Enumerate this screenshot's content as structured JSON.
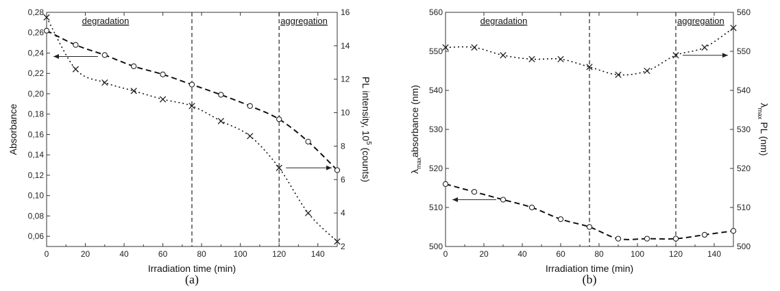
{
  "chart_data": [
    {
      "type": "scatter",
      "panel_label": "(a)",
      "xlabel": "Irradiation time (min)",
      "ylabel_left": "Absorbance",
      "ylabel_right": "PL intensity, 10",
      "ylabel_right_sup": "5",
      "ylabel_right_suffix": " (counts)",
      "xlim": [
        0,
        150
      ],
      "ylim_left": [
        0.05,
        0.28
      ],
      "ylim_right": [
        2,
        16
      ],
      "xticks": [
        0,
        20,
        40,
        60,
        80,
        100,
        120,
        140
      ],
      "yticks_left": [
        "0,06",
        "0,08",
        "0,10",
        "0,12",
        "0,14",
        "0,16",
        "0,18",
        "0,20",
        "0,22",
        "0,24",
        "0,26",
        "0,28"
      ],
      "yticks_right": [
        "2",
        "4",
        "6",
        "8",
        "10",
        "12",
        "14",
        "16"
      ],
      "vlines": [
        75,
        120
      ],
      "region_labels": [
        "degradation",
        "aggregation"
      ],
      "series": [
        {
          "axis": "left",
          "marker": "circle",
          "line": "dashed",
          "x": [
            0,
            15,
            30,
            45,
            60,
            75,
            90,
            105,
            120,
            135,
            150
          ],
          "values": [
            0.262,
            0.248,
            0.238,
            0.227,
            0.219,
            0.209,
            0.199,
            0.188,
            0.175,
            0.153,
            0.125
          ]
        },
        {
          "axis": "right",
          "marker": "cross",
          "line": "dotted",
          "x": [
            0,
            15,
            30,
            45,
            60,
            75,
            90,
            105,
            120,
            135,
            150
          ],
          "values": [
            15.7,
            12.6,
            11.8,
            11.3,
            10.8,
            10.4,
            9.5,
            8.6,
            6.7,
            4.0,
            2.3
          ]
        }
      ],
      "arrows": [
        {
          "direction": "left",
          "axis": "left"
        },
        {
          "direction": "right",
          "axis": "right"
        }
      ]
    },
    {
      "type": "scatter",
      "panel_label": "(b)",
      "xlabel": "Irradiation time (min)",
      "ylabel_left_pre": "λ",
      "ylabel_left_sub": "max",
      "ylabel_left_post": "absorbance (nm)",
      "ylabel_right_pre": "λ",
      "ylabel_right_sub": "max",
      "ylabel_right_post": " PL (nm)",
      "xlim": [
        0,
        150
      ],
      "ylim_left": [
        500,
        560
      ],
      "ylim_right": [
        500,
        560
      ],
      "xticks": [
        0,
        20,
        40,
        60,
        80,
        100,
        120,
        140
      ],
      "yticks_left": [
        "500",
        "510",
        "520",
        "530",
        "540",
        "550",
        "560"
      ],
      "yticks_right": [
        "500",
        "510",
        "520",
        "530",
        "540",
        "550",
        "560"
      ],
      "vlines": [
        75,
        120
      ],
      "region_labels": [
        "degradation",
        "aggregation"
      ],
      "series": [
        {
          "axis": "right",
          "marker": "cross",
          "line": "dotted",
          "x": [
            0,
            15,
            30,
            45,
            60,
            75,
            90,
            105,
            120,
            135,
            150
          ],
          "values": [
            551,
            551,
            549,
            548,
            548,
            546,
            544,
            545,
            549,
            551,
            556
          ]
        },
        {
          "axis": "left",
          "marker": "circle",
          "line": "dashed",
          "x": [
            0,
            15,
            30,
            45,
            60,
            75,
            90,
            105,
            120,
            135,
            150
          ],
          "values": [
            516,
            514,
            512,
            510,
            507,
            505,
            502,
            502,
            502,
            503,
            504
          ]
        }
      ],
      "arrows": [
        {
          "direction": "left",
          "axis": "left"
        },
        {
          "direction": "right",
          "axis": "right"
        }
      ]
    }
  ]
}
